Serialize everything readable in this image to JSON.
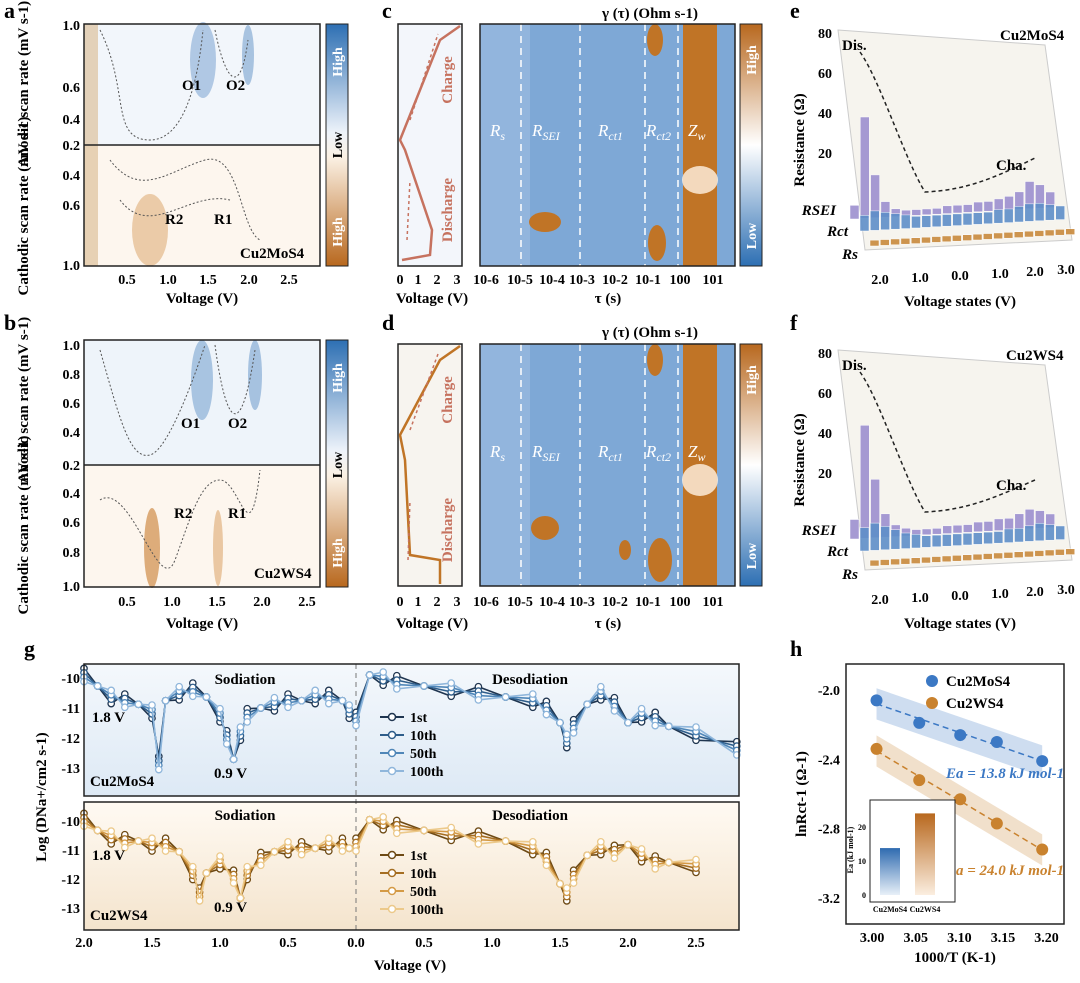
{
  "panel_letters": [
    "a",
    "b",
    "c",
    "d",
    "e",
    "f",
    "g",
    "h"
  ],
  "drt_labels": {
    "rs": "R",
    "rs_sub": "s",
    "rsei": "R",
    "rsei_sub": "SEI",
    "rct1": "R",
    "rct1_sub": "ct1",
    "rct2": "R",
    "rct2_sub": "ct2",
    "zw": "Z",
    "zw_sub": "w"
  },
  "chart_data": [
    {
      "id": "a",
      "type": "heatmap",
      "title": "",
      "sample": "Cu2MoS4",
      "xlabel": "Voltage (V)",
      "xticks": [
        "0.5",
        "1.0",
        "1.5",
        "2.0",
        "2.5"
      ],
      "ylabel_top": "Anodic scan rate (mV s-1)",
      "ylabel_bottom": "Cathodic scan rate (mV s-1)",
      "yticks_top": [
        "1.0",
        "0.6",
        "0.4",
        "0.2"
      ],
      "yticks_bottom": [
        "0.4",
        "0.6",
        "1.0"
      ],
      "peaks": [
        "O1",
        "O2",
        "R2",
        "R1"
      ],
      "colorbar": [
        "High",
        "Low",
        "High"
      ]
    },
    {
      "id": "b",
      "type": "heatmap",
      "title": "",
      "sample": "Cu2WS4",
      "xlabel": "Voltage (V)",
      "xticks": [
        "0.5",
        "1.0",
        "1.5",
        "2.0",
        "2.5"
      ],
      "ylabel_top": "Anodic scan rate (mV s-1)",
      "ylabel_bottom": "Cathodic scan rate (mV s-1)",
      "yticks_top": [
        "1.0",
        "0.8",
        "0.6",
        "0.4",
        "0.2"
      ],
      "yticks_bottom": [
        "0.4",
        "0.6",
        "0.8",
        "1.0"
      ],
      "peaks": [
        "O1",
        "O2",
        "R2",
        "R1"
      ],
      "colorbar": [
        "High",
        "Low",
        "High"
      ]
    },
    {
      "id": "c",
      "type": "heatmap",
      "title": "γ (τ) (Ohm s-1)",
      "xlabel": "τ (s)",
      "xticks": [
        "10-6",
        "10-5",
        "10-4",
        "10-3",
        "10-2",
        "10-1",
        "100",
        "101"
      ],
      "side_xlabel": "Voltage (V)",
      "side_xticks": [
        "0",
        "1",
        "2",
        "3"
      ],
      "side_labels": [
        "Charge",
        "Discharge"
      ],
      "regions": [
        "Rs",
        "RSEI",
        "Rct1",
        "Rct2",
        "Zw"
      ],
      "colorbar": [
        "High",
        "Low"
      ]
    },
    {
      "id": "d",
      "type": "heatmap",
      "title": "γ (τ) (Ohm s-1)",
      "xlabel": "τ (s)",
      "xticks": [
        "10-6",
        "10-5",
        "10-4",
        "10-3",
        "10-2",
        "10-1",
        "100",
        "101"
      ],
      "side_xlabel": "Voltage (V)",
      "side_xticks": [
        "0",
        "1",
        "2",
        "3"
      ],
      "side_labels": [
        "Charge",
        "Discharge"
      ],
      "regions": [
        "Rs",
        "RSEI",
        "Rct1",
        "Rct2",
        "Zw"
      ],
      "colorbar": [
        "High",
        "Low"
      ]
    },
    {
      "id": "e",
      "type": "bar",
      "title": "",
      "sample": "Cu2MoS4",
      "xlabel": "Voltage states (V)",
      "ylabel": "Resistance (Ω)",
      "xticks": [
        "2.0",
        "1.0",
        "0.0",
        "1.0",
        "2.0",
        "3.0"
      ],
      "yticks": [
        "20",
        "40",
        "60",
        "80"
      ],
      "series_labels": [
        "RSEI",
        "Rct",
        "Rs"
      ],
      "annotations": [
        "Dis.",
        "Cha."
      ],
      "series": [
        {
          "name": "RSEI",
          "values": [
            7,
            52,
            22,
            8,
            4,
            3,
            3,
            3,
            3,
            4,
            4,
            4,
            5,
            5,
            6,
            7,
            9,
            14,
            12,
            8
          ]
        },
        {
          "name": "Rct",
          "values": [
            8,
            10,
            9,
            8,
            7,
            6,
            6,
            6,
            6,
            6,
            6,
            6,
            6,
            7,
            7,
            8,
            9,
            9,
            8,
            7
          ]
        },
        {
          "name": "Rs",
          "values": [
            3,
            3,
            3,
            3,
            3,
            3,
            3,
            3,
            3,
            3,
            3,
            3,
            3,
            3,
            3,
            3,
            3,
            3,
            3,
            3
          ]
        }
      ]
    },
    {
      "id": "f",
      "type": "bar",
      "title": "",
      "sample": "Cu2WS4",
      "xlabel": "Voltage states (V)",
      "ylabel": "Resistance (Ω)",
      "xticks": [
        "2.0",
        "1.0",
        "0.0",
        "1.0",
        "2.0",
        "3.0"
      ],
      "yticks": [
        "20",
        "40",
        "60",
        "80"
      ],
      "series_labels": [
        "RSEI",
        "Rct",
        "Rs"
      ],
      "annotations": [
        "Dis.",
        "Cha."
      ],
      "series": [
        {
          "name": "RSEI",
          "values": [
            10,
            58,
            30,
            12,
            6,
            4,
            3,
            3,
            3,
            4,
            4,
            4,
            5,
            5,
            6,
            6,
            8,
            10,
            9,
            7
          ]
        },
        {
          "name": "Rct",
          "values": [
            12,
            14,
            12,
            10,
            8,
            7,
            6,
            6,
            6,
            6,
            6,
            6,
            6,
            6,
            7,
            7,
            8,
            9,
            8,
            7
          ]
        },
        {
          "name": "Rs",
          "values": [
            3,
            3,
            3,
            3,
            3,
            3,
            3,
            3,
            3,
            3,
            3,
            3,
            3,
            3,
            3,
            3,
            3,
            3,
            3,
            3
          ]
        }
      ]
    },
    {
      "id": "g",
      "type": "line",
      "title": "",
      "ylabel": "Log (DNa+/cm2 s-1)",
      "xlabel": "Voltage (V)",
      "xticks": [
        "2.0",
        "1.5",
        "1.0",
        "0.5",
        "0.0",
        "0.5",
        "1.0",
        "1.5",
        "2.0",
        "2.5"
      ],
      "yticks": [
        "-10",
        "-11",
        "-12",
        "-13"
      ],
      "sections": [
        "Sodiation",
        "Desodiation"
      ],
      "subplots": [
        {
          "sample": "Cu2MoS4",
          "annotations": [
            "1.8 V",
            "0.9 V"
          ],
          "series": [
            {
              "name": "1st",
              "color": "#1f3550"
            },
            {
              "name": "10th",
              "color": "#2e5d8a"
            },
            {
              "name": "50th",
              "color": "#4f86b8"
            },
            {
              "name": "100th",
              "color": "#8fb6db"
            }
          ],
          "sodiation_x": [
            2.0,
            1.9,
            1.8,
            1.7,
            1.6,
            1.5,
            1.45,
            1.4,
            1.3,
            1.2,
            1.1,
            1.0,
            0.95,
            0.9,
            0.85,
            0.8,
            0.7,
            0.6,
            0.5,
            0.4,
            0.3,
            0.2,
            0.1,
            0.05
          ],
          "sodiation_y": [
            -9.9,
            -10.2,
            -10.5,
            -10.6,
            -10.7,
            -10.9,
            -12.3,
            -10.6,
            -10.4,
            -10.3,
            -10.5,
            -11.0,
            -11.6,
            -12.2,
            -11.5,
            -11.0,
            -10.8,
            -10.7,
            -10.6,
            -10.6,
            -10.5,
            -10.5,
            -10.6,
            -10.9
          ],
          "desodiation_x": [
            0.0,
            0.1,
            0.2,
            0.3,
            0.5,
            0.7,
            0.9,
            1.1,
            1.3,
            1.4,
            1.5,
            1.55,
            1.6,
            1.7,
            1.8,
            1.9,
            2.0,
            2.1,
            2.2,
            2.3,
            2.5,
            2.8
          ],
          "desodiation_y": [
            -11.1,
            -9.9,
            -10.0,
            -10.1,
            -10.2,
            -10.3,
            -10.4,
            -10.5,
            -10.6,
            -10.8,
            -11.2,
            -11.7,
            -11.3,
            -10.7,
            -10.4,
            -10.7,
            -11.2,
            -11.0,
            -11.1,
            -11.3,
            -11.5,
            -11.9
          ]
        },
        {
          "sample": "Cu2WS4",
          "annotations": [
            "1.8 V",
            "0.9 V"
          ],
          "series": [
            {
              "name": "1st",
              "color": "#6e4a14"
            },
            {
              "name": "10th",
              "color": "#a56e22"
            },
            {
              "name": "50th",
              "color": "#d49a45"
            },
            {
              "name": "100th",
              "color": "#ecc98a"
            }
          ],
          "sodiation_x": [
            2.0,
            1.9,
            1.8,
            1.7,
            1.6,
            1.5,
            1.4,
            1.3,
            1.2,
            1.15,
            1.1,
            1.0,
            0.9,
            0.85,
            0.8,
            0.7,
            0.6,
            0.5,
            0.4,
            0.3,
            0.2,
            0.1,
            0.05
          ],
          "sodiation_y": [
            -10.1,
            -10.4,
            -10.6,
            -10.7,
            -10.7,
            -10.8,
            -10.8,
            -11.0,
            -11.6,
            -12.2,
            -11.6,
            -11.3,
            -11.7,
            -12.3,
            -11.6,
            -11.2,
            -11.0,
            -10.9,
            -10.9,
            -10.9,
            -10.8,
            -10.8,
            -10.9
          ],
          "desodiation_x": [
            0.0,
            0.1,
            0.2,
            0.3,
            0.5,
            0.7,
            0.9,
            1.1,
            1.3,
            1.4,
            1.5,
            1.55,
            1.6,
            1.7,
            1.8,
            1.9,
            2.0,
            2.1,
            2.2,
            2.3,
            2.5
          ],
          "desodiation_y": [
            -10.8,
            -10.1,
            -10.2,
            -10.3,
            -10.4,
            -10.5,
            -10.6,
            -10.7,
            -10.9,
            -11.2,
            -11.9,
            -12.2,
            -11.7,
            -11.1,
            -10.9,
            -11.0,
            -10.8,
            -11.1,
            -11.3,
            -11.3,
            -11.4
          ]
        }
      ]
    },
    {
      "id": "h",
      "type": "scatter",
      "title": "",
      "xlabel": "1000/T (K-1)",
      "ylabel": "lnRct-1 (Ω-1)",
      "xlim": [
        2.97,
        3.22
      ],
      "ylim": [
        -3.35,
        -1.85
      ],
      "xticks": [
        "3.00",
        "3.05",
        "3.10",
        "3.15",
        "3.20"
      ],
      "yticks": [
        "-2.0",
        "-2.4",
        "-2.8",
        "-3.2"
      ],
      "series": [
        {
          "name": "Cu2MoS4",
          "color": "#3b78c4",
          "x": [
            3.005,
            3.054,
            3.101,
            3.143,
            3.195
          ],
          "y": [
            -2.06,
            -2.19,
            -2.26,
            -2.3,
            -2.41
          ]
        },
        {
          "name": "Cu2WS4",
          "color": "#c9822e",
          "x": [
            3.005,
            3.054,
            3.101,
            3.143,
            3.195
          ],
          "y": [
            -2.34,
            -2.52,
            -2.63,
            -2.77,
            -2.92
          ]
        }
      ],
      "annotations": [
        "Ea = 13.8 kJ mol-1",
        "Ea = 24.0 kJ mol-1"
      ],
      "inset": {
        "ylabel": "Ea (kJ mol-1)",
        "yticks": [
          "0",
          "10",
          "20"
        ],
        "categories": [
          "Cu2MoS4",
          "Cu2WS4"
        ],
        "values": [
          13.8,
          24.0
        ]
      }
    }
  ]
}
